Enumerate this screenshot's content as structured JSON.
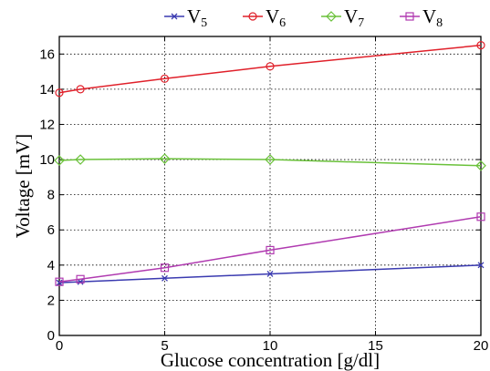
{
  "chart_data": {
    "type": "line",
    "title": "",
    "xlabel": "Glucose concentration [g/dl]",
    "ylabel": "Voltage [mV]",
    "x": [
      0,
      1,
      5,
      10,
      20
    ],
    "xlim": [
      0,
      20
    ],
    "ylim": [
      0,
      17
    ],
    "xticks": [
      0,
      5,
      10,
      15,
      20
    ],
    "yticks": [
      0,
      2,
      4,
      6,
      8,
      10,
      12,
      14,
      16
    ],
    "grid": true,
    "legend_position": "top-center",
    "series": [
      {
        "name": "V5",
        "label_main": "V",
        "label_sub": "5",
        "color": "#3a3ab0",
        "marker": "x",
        "values": [
          3.0,
          3.05,
          3.25,
          3.5,
          4.0
        ]
      },
      {
        "name": "V6",
        "label_main": "V",
        "label_sub": "6",
        "color": "#e0202a",
        "marker": "circle",
        "values": [
          13.8,
          14.0,
          14.6,
          15.3,
          16.5
        ]
      },
      {
        "name": "V7",
        "label_main": "V",
        "label_sub": "7",
        "color": "#6ac13a",
        "marker": "diamond",
        "values": [
          9.95,
          10.0,
          10.05,
          10.0,
          9.65
        ]
      },
      {
        "name": "V8",
        "label_main": "V",
        "label_sub": "8",
        "color": "#b03ab0",
        "marker": "square",
        "values": [
          3.05,
          3.2,
          3.85,
          4.85,
          6.75
        ]
      }
    ]
  }
}
